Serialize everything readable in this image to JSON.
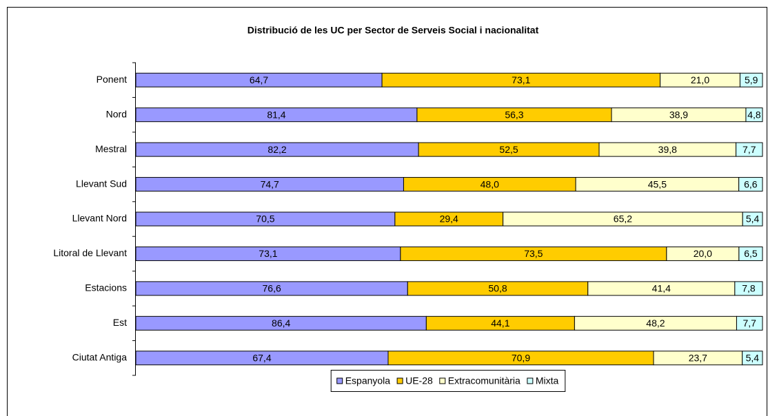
{
  "chart_data": {
    "type": "bar",
    "orientation": "horizontal",
    "stacking": "percent",
    "title": "Distribució de les UC per Sector de Serveis Social i nacionalitat",
    "categories": [
      "Ponent",
      "Nord",
      "Mestral",
      "Llevant Sud",
      "Llevant Nord",
      "Litoral de Llevant",
      "Estacions",
      "Est",
      "Ciutat Antiga"
    ],
    "series": [
      {
        "name": "Espanyola",
        "color": "#9999ff",
        "values": [
          64.7,
          81.4,
          82.2,
          74.7,
          70.5,
          73.1,
          76.6,
          86.4,
          67.4
        ],
        "value_labels": [
          "64,7",
          "81,4",
          "82,2",
          "74,7",
          "70,5",
          "73,1",
          "76,6",
          "86,4",
          "67,4"
        ]
      },
      {
        "name": "UE-28",
        "color": "#ffcc00",
        "values": [
          73.1,
          56.3,
          52.5,
          48.0,
          29.4,
          73.5,
          50.8,
          44.1,
          70.9
        ],
        "value_labels": [
          "73,1",
          "56,3",
          "52,5",
          "48,0",
          "29,4",
          "73,5",
          "50,8",
          "44,1",
          "70,9"
        ]
      },
      {
        "name": "Extracomunitària",
        "color": "#ffffcc",
        "values": [
          21.0,
          38.9,
          39.8,
          45.5,
          65.2,
          20.0,
          41.4,
          48.2,
          23.7
        ],
        "value_labels": [
          "21,0",
          "38,9",
          "39,8",
          "45,5",
          "65,2",
          "20,0",
          "41,4",
          "48,2",
          "23,7"
        ]
      },
      {
        "name": "Mixta",
        "color": "#ccffff",
        "values": [
          5.9,
          4.8,
          7.7,
          6.6,
          5.4,
          6.5,
          7.8,
          7.7,
          5.4
        ],
        "value_labels": [
          "5,9",
          "4,8",
          "7,7",
          "6,6",
          "5,4",
          "6,5",
          "7,8",
          "7,7",
          "5,4"
        ]
      }
    ],
    "legend": "bottom"
  }
}
